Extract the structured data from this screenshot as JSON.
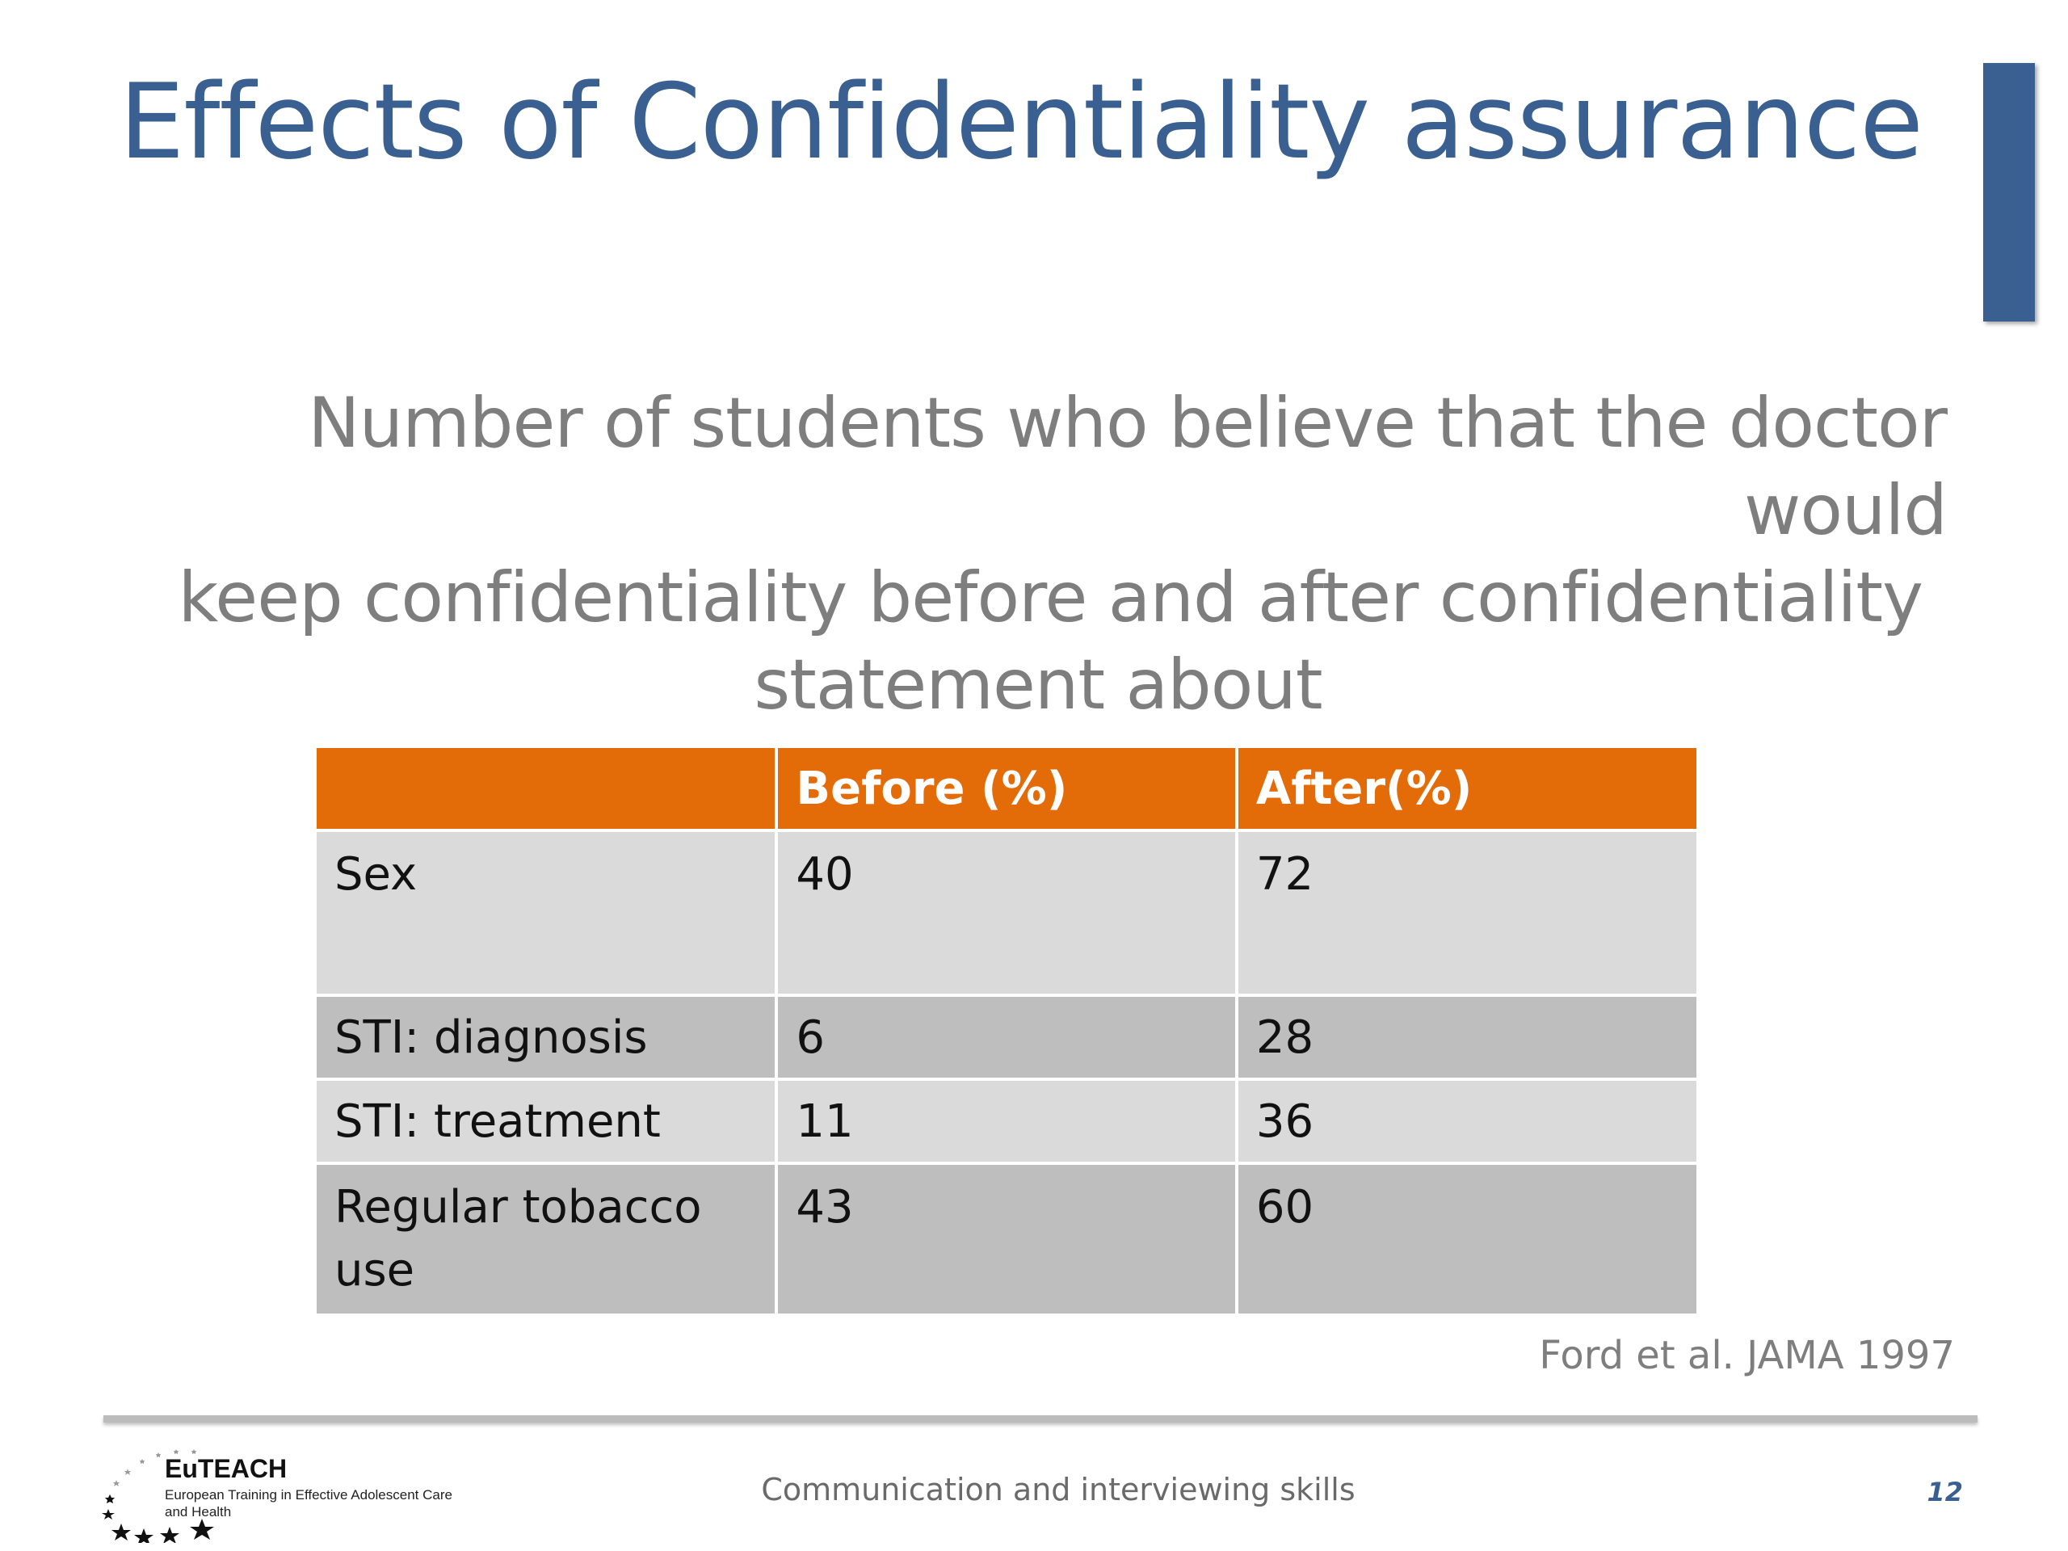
{
  "slide": {
    "title": "Effects of Confidentiality assurance",
    "subtitle_lines": [
      "Number of students who believe that the doctor would",
      "keep confidentiality before and after confidentiality",
      "statement about"
    ],
    "accent_color": "#3a5f91"
  },
  "table": {
    "header_color": "#e36c09",
    "headers": [
      "",
      "Before (%)",
      "After(%)"
    ],
    "rows": [
      {
        "label": "Sex",
        "before": "40",
        "after": "72"
      },
      {
        "label": "STI: diagnosis",
        "before": "6",
        "after": "28"
      },
      {
        "label": "STI: treatment",
        "before": "11",
        "after": "36"
      },
      {
        "label": "Regular tobacco use",
        "before": "43",
        "after": "60"
      }
    ]
  },
  "citation": "Ford et al. JAMA 1997",
  "footer": {
    "logo_name": "EuTEACH",
    "logo_tagline": "European Training in Effective Adolescent Care and Health",
    "center_text": "Communication and interviewing skills",
    "page_number": "12"
  }
}
